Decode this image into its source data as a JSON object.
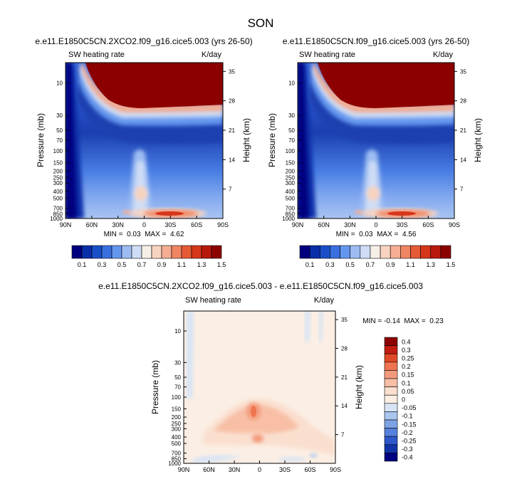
{
  "figure": {
    "title": "SON"
  },
  "chart_data": [
    {
      "type": "heatmap",
      "title": "e.e11.E1850C5CN.2XCO2.f09_g16.cice5.003 (yrs 26-50)",
      "subtitle_left": "SW heating rate",
      "subtitle_right": "K/day",
      "ylabel": "Pressure (mb)",
      "ylabel_right": "Height (km)",
      "x_ticks": [
        "90N",
        "60N",
        "30N",
        "0",
        "30S",
        "60S",
        "90S"
      ],
      "y_ticks": [
        "10",
        "30",
        "50",
        "70",
        "100",
        "150",
        "200",
        "250",
        "300",
        "400",
        "500",
        "700",
        "850",
        "1000"
      ],
      "y_ticks_right": [
        "35",
        "28",
        "21",
        "14",
        "7"
      ],
      "stats": "MIN =  0.03  MAX =  4.62",
      "min": 0.03,
      "max": 4.62
    },
    {
      "type": "heatmap",
      "title": "e.e11.E1850C5CN.f09_g16.cice5.003 (yrs 26-50)",
      "subtitle_left": "SW heating rate",
      "subtitle_right": "K/day",
      "ylabel": "Pressure (mb)",
      "ylabel_right": "Height (km)",
      "x_ticks": [
        "90N",
        "60N",
        "30N",
        "0",
        "30S",
        "60S",
        "90S"
      ],
      "y_ticks": [
        "10",
        "30",
        "50",
        "70",
        "100",
        "150",
        "200",
        "250",
        "300",
        "400",
        "500",
        "700",
        "850",
        "1000"
      ],
      "y_ticks_right": [
        "35",
        "28",
        "21",
        "14",
        "7"
      ],
      "stats": "MIN =  0.03  MAX =  4.56",
      "min": 0.03,
      "max": 4.56
    },
    {
      "type": "heatmap",
      "title": "e.e11.E1850C5CN.2XCO2.f09_g16.cice5.003 - e.e11.E1850C5CN.f09_g16.cice5.003",
      "subtitle_left": "SW heating rate",
      "subtitle_right": "K/day",
      "ylabel": "Pressure (mb)",
      "ylabel_right": "Height (km)",
      "x_ticks": [
        "90N",
        "60N",
        "30N",
        "0",
        "30S",
        "60S",
        "90S"
      ],
      "y_ticks": [
        "10",
        "30",
        "50",
        "70",
        "100",
        "150",
        "200",
        "250",
        "300",
        "400",
        "500",
        "700",
        "850",
        "1000"
      ],
      "y_ticks_right": [
        "35",
        "28",
        "21",
        "14",
        "7"
      ],
      "stats": "MIN = -0.14  MAX =  0.23",
      "min": -0.14,
      "max": 0.23
    }
  ],
  "colorbar_top": {
    "labels": [
      "0.1",
      "0.3",
      "0.5",
      "0.7",
      "0.9",
      "1.1",
      "1.3",
      "1.5"
    ],
    "colors": [
      "#00007f",
      "#0a2ea8",
      "#1a4fc8",
      "#3a6fe0",
      "#6596ee",
      "#9dbcf2",
      "#cfdcf5",
      "#f6efe6",
      "#f8d3c0",
      "#f5ae93",
      "#f08563",
      "#e65a36",
      "#d6361a",
      "#b8180c",
      "#8c0000"
    ]
  },
  "colorbar_diff": {
    "labels": [
      "0.4",
      "0.3",
      "0.25",
      "0.2",
      "0.15",
      "0.1",
      "0.05",
      "0",
      "-0.05",
      "-0.1",
      "-0.15",
      "-0.2",
      "-0.25",
      "-0.3",
      "-0.4"
    ],
    "colors": [
      "#8c0000",
      "#c21c0e",
      "#e14a26",
      "#ef7450",
      "#f49a7c",
      "#f8bfa6",
      "#fadfcf",
      "#fbeee4",
      "#d6e4f5",
      "#aac6ef",
      "#7ea4e6",
      "#5580db",
      "#2e57cc",
      "#1233a8",
      "#000080"
    ]
  },
  "colors": {
    "dark_red": "#8c0000",
    "dark_blue": "#00007f"
  }
}
